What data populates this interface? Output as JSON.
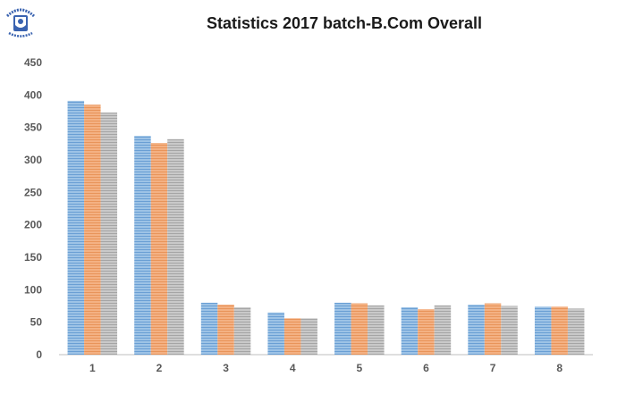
{
  "chart_data": {
    "type": "bar",
    "title": "Statistics 2017 batch-B.Com Overall",
    "categories": [
      "1",
      "2",
      "3",
      "4",
      "5",
      "6",
      "7",
      "8"
    ],
    "series": [
      {
        "values": [
          391,
          337,
          80,
          65,
          80,
          73,
          77,
          74
        ]
      },
      {
        "values": [
          385,
          326,
          77,
          56,
          79,
          70,
          79,
          74
        ]
      },
      {
        "values": [
          373,
          332,
          73,
          56,
          76,
          76,
          75,
          71
        ]
      }
    ],
    "yticks": [
      "0",
      "50",
      "100",
      "150",
      "200",
      "250",
      "300",
      "350",
      "400",
      "450"
    ],
    "ylim": [
      0,
      450
    ],
    "grid": false,
    "legend": "none",
    "colors": [
      "#9dc3e6",
      "#f4b183",
      "#c9c9c9"
    ],
    "stripe_colors": [
      "#6a9fd4",
      "#e8945a",
      "#a5a5a5"
    ]
  },
  "logo": {
    "name": "college-emblem-icon"
  }
}
